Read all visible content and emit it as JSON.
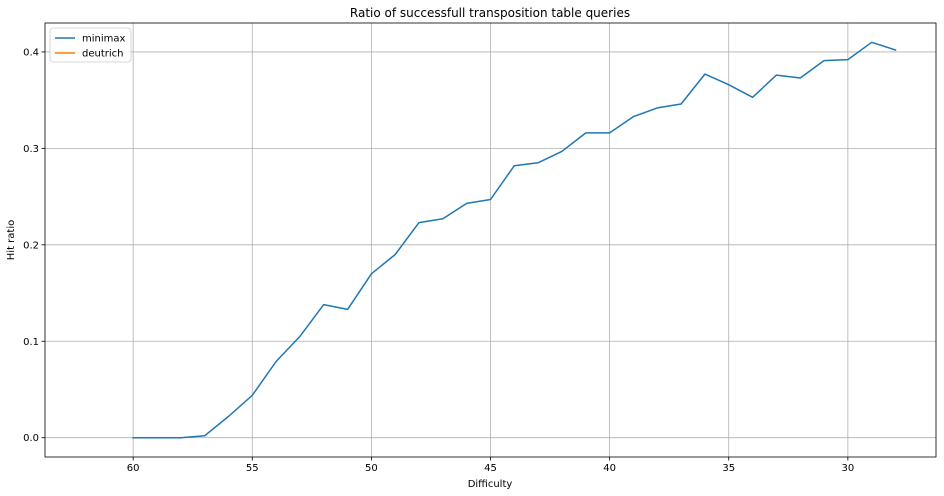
{
  "chart_data": {
    "type": "line",
    "title": "Ratio of successfull transposition table queries",
    "xlabel": "Difficulty",
    "ylabel": "Hit ratio",
    "x_inverted": true,
    "xlim": [
      63.7,
      26.3
    ],
    "ylim": [
      -0.02,
      0.43
    ],
    "xticks": [
      60,
      55,
      50,
      45,
      40,
      35,
      30
    ],
    "yticks": [
      0.0,
      0.1,
      0.2,
      0.3,
      0.4
    ],
    "ytick_labels": [
      "0.0",
      "0.1",
      "0.2",
      "0.3",
      "0.4"
    ],
    "grid": true,
    "legend_position": "upper left",
    "series": [
      {
        "name": "minimax",
        "color": "#1f77b4",
        "x": [
          60,
          59,
          58,
          57,
          56,
          55,
          54,
          53,
          52,
          51,
          50,
          49,
          48,
          47,
          46,
          45,
          44,
          43,
          42,
          41,
          40,
          39,
          38,
          37,
          36,
          35,
          34,
          33,
          32,
          31,
          30,
          29,
          28
        ],
        "y": [
          0.0,
          0.0,
          0.0,
          0.002,
          0.022,
          0.044,
          0.079,
          0.105,
          0.138,
          0.133,
          0.17,
          0.19,
          0.223,
          0.227,
          0.243,
          0.247,
          0.282,
          0.285,
          0.297,
          0.316,
          0.316,
          0.333,
          0.342,
          0.346,
          0.377,
          0.366,
          0.353,
          0.376,
          0.373,
          0.391,
          0.392,
          0.41,
          0.402
        ]
      },
      {
        "name": "deutrich",
        "color": "#ff7f0e",
        "x": [],
        "y": []
      }
    ]
  }
}
